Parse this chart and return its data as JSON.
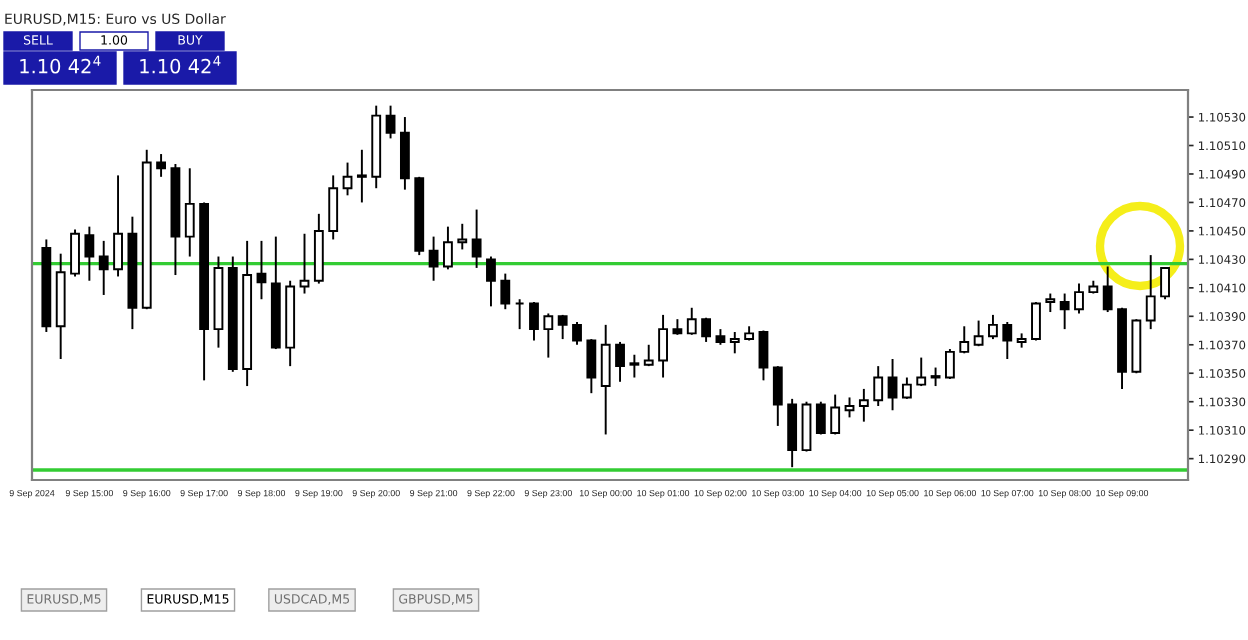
{
  "chart_data": {
    "type": "candlestick",
    "title": "EURUSD,M15: Euro vs US Dollar",
    "x": [
      "2024-09-09T14:15",
      "2024-09-09T14:30",
      "2024-09-09T14:45",
      "2024-09-09T15:00",
      "2024-09-09T15:15",
      "2024-09-09T15:30",
      "2024-09-09T15:45",
      "2024-09-09T16:00",
      "2024-09-09T16:15",
      "2024-09-09T16:30",
      "2024-09-09T16:45",
      "2024-09-09T17:00",
      "2024-09-09T17:15",
      "2024-09-09T17:30",
      "2024-09-09T17:45",
      "2024-09-09T18:00",
      "2024-09-09T18:15",
      "2024-09-09T18:30",
      "2024-09-09T18:45",
      "2024-09-09T19:00",
      "2024-09-09T19:15",
      "2024-09-09T19:30",
      "2024-09-09T19:45",
      "2024-09-09T20:00",
      "2024-09-09T20:15",
      "2024-09-09T20:30",
      "2024-09-09T20:45",
      "2024-09-09T21:00",
      "2024-09-09T21:15",
      "2024-09-09T21:30",
      "2024-09-09T21:45",
      "2024-09-09T22:00",
      "2024-09-09T22:15",
      "2024-09-09T22:30",
      "2024-09-09T22:45",
      "2024-09-09T23:00",
      "2024-09-09T23:15",
      "2024-09-09T23:30",
      "2024-09-09T23:45",
      "2024-09-10T00:00",
      "2024-09-10T00:15",
      "2024-09-10T00:30",
      "2024-09-10T00:45",
      "2024-09-10T01:00",
      "2024-09-10T01:15",
      "2024-09-10T01:30",
      "2024-09-10T01:45",
      "2024-09-10T02:00",
      "2024-09-10T02:15",
      "2024-09-10T02:30",
      "2024-09-10T02:45",
      "2024-09-10T03:00",
      "2024-09-10T03:15",
      "2024-09-10T03:30",
      "2024-09-10T03:45",
      "2024-09-10T04:00",
      "2024-09-10T04:15",
      "2024-09-10T04:30",
      "2024-09-10T04:45",
      "2024-09-10T05:00",
      "2024-09-10T05:15",
      "2024-09-10T05:30",
      "2024-09-10T05:45",
      "2024-09-10T06:00",
      "2024-09-10T06:15",
      "2024-09-10T06:30",
      "2024-09-10T06:45",
      "2024-09-10T07:00",
      "2024-09-10T07:15",
      "2024-09-10T07:30",
      "2024-09-10T07:45",
      "2024-09-10T08:00",
      "2024-09-10T08:15",
      "2024-09-10T08:30",
      "2024-09-10T08:45",
      "2024-09-10T09:00",
      "2024-09-10T09:15",
      "2024-09-10T09:30",
      "2024-09-10T09:45"
    ],
    "ohlc": [
      [
        1.10438,
        1.10444,
        1.10379,
        1.10383
      ],
      [
        1.10383,
        1.10434,
        1.1036,
        1.10421
      ],
      [
        1.1042,
        1.10451,
        1.10418,
        1.10448
      ],
      [
        1.10447,
        1.10453,
        1.10415,
        1.10432
      ],
      [
        1.10432,
        1.10443,
        1.10405,
        1.10423
      ],
      [
        1.10423,
        1.10489,
        1.10418,
        1.10448
      ],
      [
        1.10448,
        1.1046,
        1.10381,
        1.10396
      ],
      [
        1.10396,
        1.10507,
        1.10395,
        1.10498
      ],
      [
        1.10498,
        1.10504,
        1.10488,
        1.10494
      ],
      [
        1.10494,
        1.10497,
        1.10419,
        1.10446
      ],
      [
        1.10446,
        1.10494,
        1.10432,
        1.10469
      ],
      [
        1.10469,
        1.1047,
        1.10345,
        1.10381
      ],
      [
        1.10381,
        1.10432,
        1.10368,
        1.10424
      ],
      [
        1.10424,
        1.10432,
        1.10351,
        1.10353
      ],
      [
        1.10353,
        1.10443,
        1.10341,
        1.10419
      ],
      [
        1.1042,
        1.10443,
        1.10402,
        1.10414
      ],
      [
        1.10413,
        1.10446,
        1.10367,
        1.10368
      ],
      [
        1.10368,
        1.10415,
        1.10355,
        1.10411
      ],
      [
        1.10411,
        1.10448,
        1.10406,
        1.10415
      ],
      [
        1.10415,
        1.10462,
        1.10413,
        1.1045
      ],
      [
        1.1045,
        1.10489,
        1.10444,
        1.1048
      ],
      [
        1.1048,
        1.10498,
        1.10475,
        1.10488
      ],
      [
        1.10488,
        1.10507,
        1.1047,
        1.10489
      ],
      [
        1.10488,
        1.10538,
        1.1048,
        1.10531
      ],
      [
        1.10531,
        1.10538,
        1.10515,
        1.10519
      ],
      [
        1.10519,
        1.1053,
        1.10479,
        1.10487
      ],
      [
        1.10487,
        1.10488,
        1.10433,
        1.10436
      ],
      [
        1.10436,
        1.10446,
        1.10415,
        1.10425
      ],
      [
        1.10425,
        1.10453,
        1.10423,
        1.10442
      ],
      [
        1.10442,
        1.10455,
        1.10437,
        1.10444
      ],
      [
        1.10444,
        1.10465,
        1.10424,
        1.10432
      ],
      [
        1.1043,
        1.10432,
        1.10397,
        1.10415
      ],
      [
        1.10415,
        1.1042,
        1.10395,
        1.10399
      ],
      [
        1.10399,
        1.10402,
        1.10381,
        1.10399
      ],
      [
        1.10399,
        1.104,
        1.10373,
        1.10381
      ],
      [
        1.10381,
        1.10392,
        1.10361,
        1.1039
      ],
      [
        1.1039,
        1.10391,
        1.10374,
        1.10384
      ],
      [
        1.10384,
        1.10386,
        1.1037,
        1.10373
      ],
      [
        1.10373,
        1.10374,
        1.10336,
        1.10347
      ],
      [
        1.10341,
        1.10384,
        1.10307,
        1.1037
      ],
      [
        1.1037,
        1.10372,
        1.10344,
        1.10355
      ],
      [
        1.10356,
        1.10363,
        1.10347,
        1.10357
      ],
      [
        1.10356,
        1.1037,
        1.10355,
        1.10359
      ],
      [
        1.10359,
        1.10391,
        1.10347,
        1.10381
      ],
      [
        1.10381,
        1.10388,
        1.10377,
        1.10378
      ],
      [
        1.10378,
        1.10396,
        1.10377,
        1.10388
      ],
      [
        1.10388,
        1.10389,
        1.10372,
        1.10376
      ],
      [
        1.10376,
        1.10381,
        1.1037,
        1.10372
      ],
      [
        1.10372,
        1.10379,
        1.10364,
        1.10374
      ],
      [
        1.10374,
        1.10383,
        1.10373,
        1.10378
      ],
      [
        1.10379,
        1.1038,
        1.10345,
        1.10354
      ],
      [
        1.10354,
        1.10355,
        1.10313,
        1.10328
      ],
      [
        1.10328,
        1.10332,
        1.10284,
        1.10296
      ],
      [
        1.10296,
        1.1033,
        1.10295,
        1.10328
      ],
      [
        1.10328,
        1.1033,
        1.10307,
        1.10308
      ],
      [
        1.10308,
        1.10335,
        1.10307,
        1.10326
      ],
      [
        1.10324,
        1.10333,
        1.10319,
        1.10327
      ],
      [
        1.10327,
        1.10339,
        1.10316,
        1.10331
      ],
      [
        1.10331,
        1.10355,
        1.10327,
        1.10347
      ],
      [
        1.10347,
        1.1036,
        1.10324,
        1.10333
      ],
      [
        1.10333,
        1.10347,
        1.10332,
        1.10342
      ],
      [
        1.10342,
        1.10361,
        1.10341,
        1.10347
      ],
      [
        1.10347,
        1.10354,
        1.10341,
        1.10348
      ],
      [
        1.10347,
        1.10367,
        1.10346,
        1.10365
      ],
      [
        1.10365,
        1.10383,
        1.10364,
        1.10372
      ],
      [
        1.1037,
        1.10387,
        1.10369,
        1.10376
      ],
      [
        1.10376,
        1.10391,
        1.10374,
        1.10384
      ],
      [
        1.10384,
        1.10386,
        1.1036,
        1.10373
      ],
      [
        1.10372,
        1.10378,
        1.10368,
        1.10374
      ],
      [
        1.10374,
        1.104,
        1.10373,
        1.10399
      ],
      [
        1.104,
        1.10406,
        1.10393,
        1.10402
      ],
      [
        1.104,
        1.10406,
        1.10381,
        1.10395
      ],
      [
        1.10395,
        1.10413,
        1.10392,
        1.10407
      ],
      [
        1.10407,
        1.10415,
        1.10406,
        1.10411
      ],
      [
        1.10411,
        1.10425,
        1.10393,
        1.10395
      ],
      [
        1.10395,
        1.10396,
        1.10339,
        1.10351
      ],
      [
        1.10351,
        1.10388,
        1.1035,
        1.10387
      ],
      [
        1.10387,
        1.10433,
        1.10381,
        1.10404
      ],
      [
        1.10404,
        1.10424,
        1.10402,
        1.10424
      ]
    ],
    "xlim": [
      "2024-09-09T14:00",
      "2024-09-10T10:09"
    ],
    "xticks": [
      {
        "value": "2024-09-09T14:00",
        "label": "9 Sep 2024"
      },
      {
        "value": "2024-09-09T15:00",
        "label": "9 Sep 15:00"
      },
      {
        "value": "2024-09-09T16:00",
        "label": "9 Sep 16:00"
      },
      {
        "value": "2024-09-09T17:00",
        "label": "9 Sep 17:00"
      },
      {
        "value": "2024-09-09T18:00",
        "label": "9 Sep 18:00"
      },
      {
        "value": "2024-09-09T19:00",
        "label": "9 Sep 19:00"
      },
      {
        "value": "2024-09-09T20:00",
        "label": "9 Sep 20:00"
      },
      {
        "value": "2024-09-09T21:00",
        "label": "9 Sep 21:00"
      },
      {
        "value": "2024-09-09T22:00",
        "label": "9 Sep 22:00"
      },
      {
        "value": "2024-09-09T23:00",
        "label": "9 Sep 23:00"
      },
      {
        "value": "2024-09-10T00:00",
        "label": "10 Sep 00:00"
      },
      {
        "value": "2024-09-10T01:00",
        "label": "10 Sep 01:00"
      },
      {
        "value": "2024-09-10T02:00",
        "label": "10 Sep 02:00"
      },
      {
        "value": "2024-09-10T03:00",
        "label": "10 Sep 03:00"
      },
      {
        "value": "2024-09-10T04:00",
        "label": "10 Sep 04:00"
      },
      {
        "value": "2024-09-10T05:00",
        "label": "10 Sep 05:00"
      },
      {
        "value": "2024-09-10T06:00",
        "label": "10 Sep 06:00"
      },
      {
        "value": "2024-09-10T07:00",
        "label": "10 Sep 07:00"
      },
      {
        "value": "2024-09-10T08:00",
        "label": "10 Sep 08:00"
      },
      {
        "value": "2024-09-10T09:00",
        "label": "10 Sep 09:00"
      }
    ],
    "ylim": [
      1.10275,
      1.10549
    ],
    "yticks": [
      {
        "value": 1.1029,
        "label": "1.10290"
      },
      {
        "value": 1.1031,
        "label": "1.10310"
      },
      {
        "value": 1.1033,
        "label": "1.10330"
      },
      {
        "value": 1.1035,
        "label": "1.10350"
      },
      {
        "value": 1.1037,
        "label": "1.10370"
      },
      {
        "value": 1.1039,
        "label": "1.10390"
      },
      {
        "value": 1.1041,
        "label": "1.10410"
      },
      {
        "value": 1.1043,
        "label": "1.10430"
      },
      {
        "value": 1.1045,
        "label": "1.10450"
      },
      {
        "value": 1.1047,
        "label": "1.10470"
      },
      {
        "value": 1.1049,
        "label": "1.10490"
      },
      {
        "value": 1.1051,
        "label": "1.10510"
      },
      {
        "value": 1.1053,
        "label": "1.10530"
      }
    ],
    "ref_lines": [
      {
        "axis": "y",
        "value": 1.10427,
        "color": "#33cc33"
      },
      {
        "axis": "y",
        "value": 1.10282,
        "color": "#33cc33"
      }
    ],
    "annotations": [
      "SELL",
      "1.00",
      "BUY",
      "1.10 42$^{4}$",
      "1.10 42$^{4}$",
      "EURUSD,M5",
      "EURUSD,M15",
      "USDCAD,M5",
      "GBPUSD,M5"
    ],
    "grid": false
  }
}
